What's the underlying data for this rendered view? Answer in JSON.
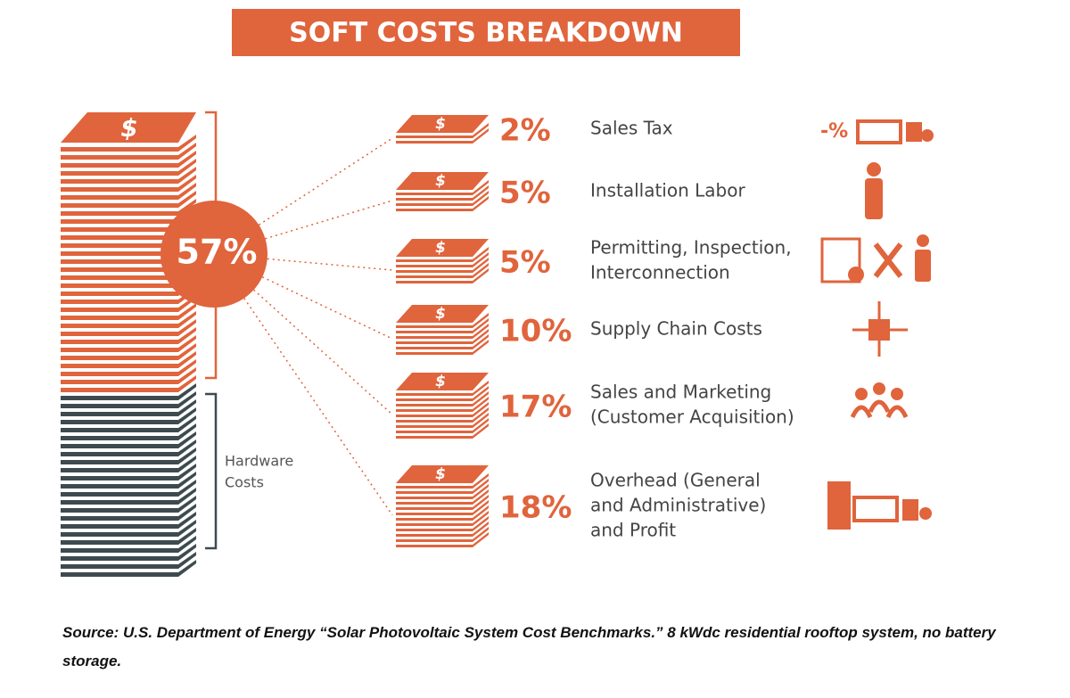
{
  "header": {
    "title": "SOFT COSTS BREAKDOWN"
  },
  "symbols": {
    "currency": "$",
    "tax": "-%"
  },
  "soft_costs": {
    "total": "57%",
    "items": [
      {
        "percent": "2%",
        "label": [
          "Sales Tax"
        ]
      },
      {
        "percent": "5%",
        "label": [
          "Installation Labor"
        ]
      },
      {
        "percent": "5%",
        "label": [
          "Permitting, Inspection,",
          "Interconnection"
        ]
      },
      {
        "percent": "10%",
        "label": [
          "Supply Chain Costs"
        ]
      },
      {
        "percent": "17%",
        "label": [
          "Sales and Marketing",
          "(Customer Acquisition)"
        ]
      },
      {
        "percent": "18%",
        "label": [
          "Overhead (General",
          "and Administrative)",
          "and Profit"
        ]
      }
    ]
  },
  "hardware": {
    "label": [
      "Hardware",
      "Costs"
    ]
  },
  "source": "Source: U.S. Department of Energy “Solar Photovoltaic System Cost Benchmarks.” 8 kWdc residential rooftop system, no battery storage."
}
